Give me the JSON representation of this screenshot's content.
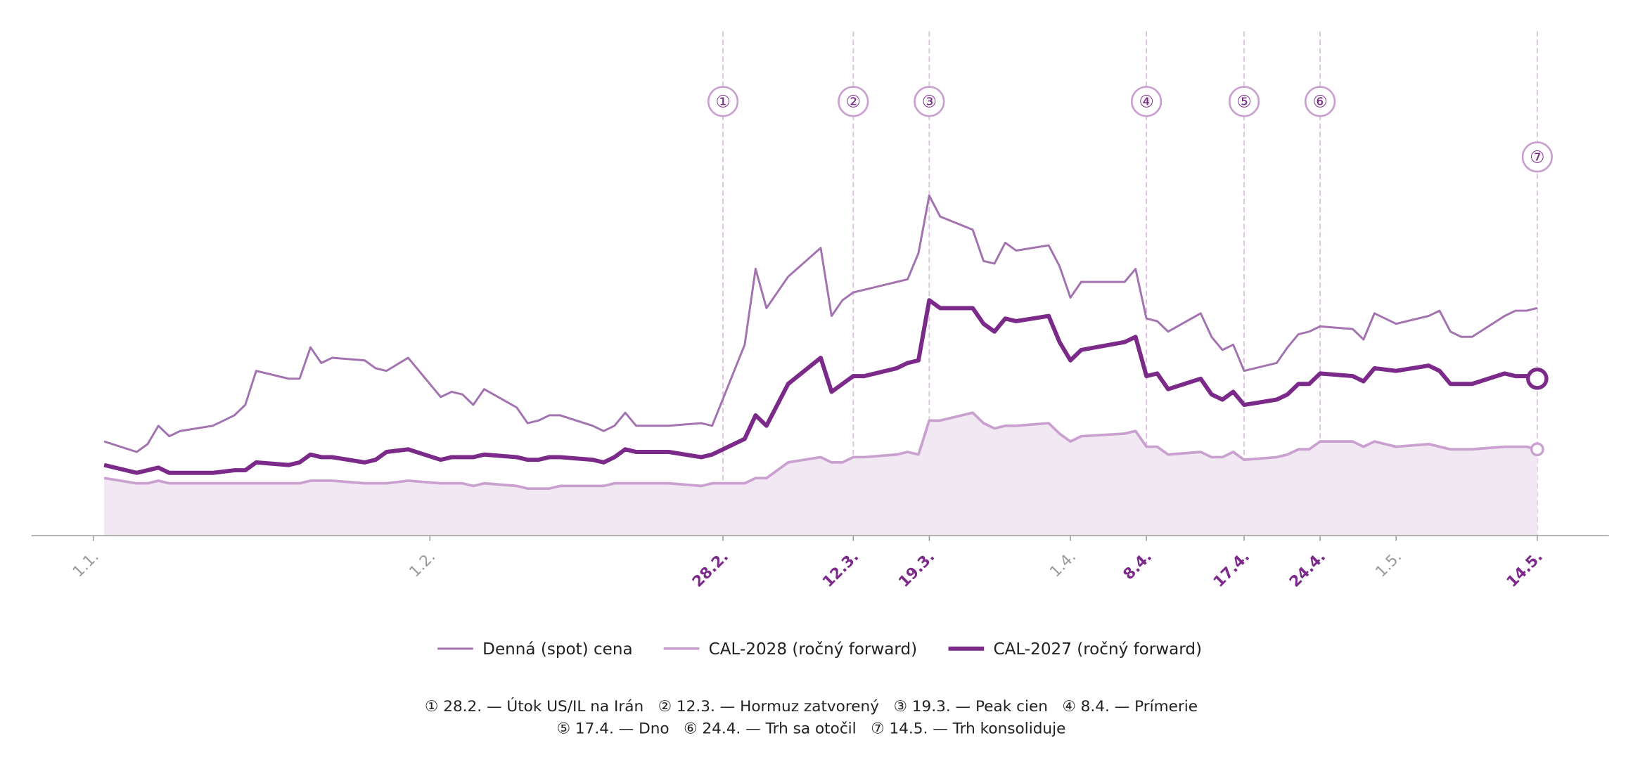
{
  "chart_data": {
    "type": "line",
    "x": [
      1,
      4,
      5,
      6,
      7,
      8,
      11,
      13,
      14,
      15,
      18,
      19,
      20,
      21,
      22,
      25,
      26,
      27,
      29,
      32,
      33,
      34,
      35,
      36,
      39,
      40,
      41,
      42,
      43,
      46,
      47,
      48,
      49,
      50,
      53,
      56,
      57,
      60,
      61,
      62,
      64,
      67,
      68,
      69,
      70,
      71,
      74,
      75,
      76,
      77,
      78,
      81,
      82,
      83,
      84,
      85,
      88,
      89,
      90,
      91,
      95,
      96,
      97,
      98,
      99,
      102,
      103,
      104,
      105,
      106,
      109,
      110,
      111,
      112,
      113,
      116,
      117,
      118,
      120,
      123,
      124,
      125,
      126,
      127,
      130,
      131,
      132,
      133
    ],
    "series": [
      {
        "name": "Denná (spot) cena",
        "color": "#a373b0",
        "width": 2,
        "values": [
          36,
          32,
          35,
          42,
          38,
          40,
          42,
          46,
          50,
          63,
          60,
          60,
          72,
          66,
          68,
          67,
          64,
          63,
          68,
          53,
          55,
          54,
          50,
          56,
          49,
          43,
          44,
          46,
          46,
          42,
          40,
          42,
          47,
          42,
          42,
          43,
          42,
          73,
          102,
          87,
          99,
          110,
          84,
          90,
          93,
          94,
          97,
          98,
          108,
          130,
          122,
          117,
          105,
          104,
          112,
          109,
          111,
          103,
          91,
          97,
          97,
          102,
          83,
          82,
          78,
          85,
          76,
          71,
          73,
          63,
          66,
          72,
          77,
          78,
          80,
          79,
          75,
          85,
          81,
          84,
          86,
          78,
          76,
          76,
          84,
          86,
          86,
          87
        ]
      },
      {
        "name": "CAL-2028 (ročný forward)",
        "color": "#c9a0cf",
        "width": 2.5,
        "area": true,
        "end_marker": true,
        "values": [
          22,
          20,
          20,
          21,
          20,
          20,
          20,
          20,
          20,
          20,
          20,
          20,
          21,
          21,
          21,
          20,
          20,
          20,
          21,
          20,
          20,
          20,
          19,
          20,
          19,
          18,
          18,
          18,
          19,
          19,
          19,
          20,
          20,
          20,
          20,
          19,
          20,
          20,
          22,
          22,
          28,
          30,
          28,
          28,
          30,
          30,
          31,
          32,
          31,
          44,
          44,
          47,
          43,
          41,
          42,
          42,
          43,
          39,
          36,
          38,
          39,
          40,
          34,
          34,
          31,
          32,
          30,
          30,
          32,
          29,
          30,
          31,
          33,
          33,
          36,
          36,
          34,
          36,
          34,
          35,
          34,
          33,
          33,
          33,
          34,
          34,
          34,
          33
        ]
      },
      {
        "name": "CAL-2027 (ročný forward)",
        "color": "#7b2a8a",
        "width": 4,
        "end_marker": true,
        "values": [
          27,
          24,
          25,
          26,
          24,
          24,
          24,
          25,
          25,
          28,
          27,
          28,
          31,
          30,
          30,
          28,
          29,
          32,
          33,
          29,
          30,
          30,
          30,
          31,
          30,
          29,
          29,
          30,
          30,
          29,
          28,
          30,
          33,
          32,
          32,
          30,
          31,
          37,
          46,
          42,
          58,
          68,
          55,
          58,
          61,
          61,
          64,
          66,
          67,
          90,
          87,
          87,
          81,
          78,
          83,
          82,
          84,
          74,
          67,
          71,
          74,
          76,
          61,
          62,
          56,
          60,
          54,
          52,
          55,
          50,
          52,
          54,
          58,
          58,
          62,
          61,
          59,
          64,
          63,
          65,
          63,
          58,
          58,
          58,
          62,
          61,
          61,
          60
        ]
      }
    ],
    "xlim": [
      -5.7,
      139.6
    ],
    "ylim": [
      0,
      200
    ],
    "xticks": [
      {
        "value": 0,
        "label": "1.1."
      },
      {
        "value": 31,
        "label": "1.2."
      },
      {
        "value": 58,
        "label": "28.2."
      },
      {
        "value": 70,
        "label": "12.3."
      },
      {
        "value": 77,
        "label": "19.3."
      },
      {
        "value": 90,
        "label": "1.4."
      },
      {
        "value": 97,
        "label": "8.4."
      },
      {
        "value": 106,
        "label": "17.4."
      },
      {
        "value": 113,
        "label": "24.4."
      },
      {
        "value": 120,
        "label": "1.5."
      },
      {
        "value": 133,
        "label": "14.5."
      }
    ],
    "events": [
      {
        "x": 58,
        "symbol": "①"
      },
      {
        "x": 70,
        "symbol": "②"
      },
      {
        "x": 77,
        "symbol": "③"
      },
      {
        "x": 97,
        "symbol": "④"
      },
      {
        "x": 106,
        "symbol": "⑤"
      },
      {
        "x": 113,
        "symbol": "⑥"
      },
      {
        "x": 133,
        "symbol": "⑦"
      }
    ],
    "notes": [
      "① 28.2. — Útok US/IL na Irán   ② 12.3. — Hormuz zatvorený   ③ 19.3. — Peak cien   ④ 8.4. — Prímerie",
      "⑤ 17.4. — Dno   ⑥ 24.4. — Trh sa otočil   ⑦ 14.5. — Trh konsoliduje"
    ]
  }
}
